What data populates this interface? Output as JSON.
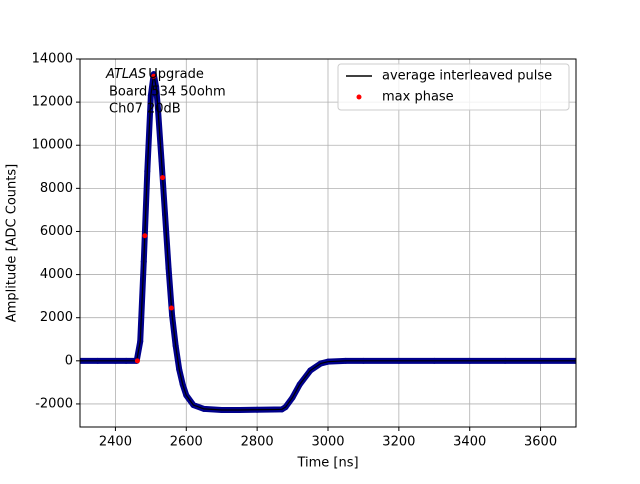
{
  "chart_data": {
    "type": "scatter",
    "xlabel": "Time [ns]",
    "ylabel": "Amplitude [ADC Counts]",
    "annotation": {
      "italic": "ATLAS",
      "lines": [
        "Upgrade",
        "Board 534 50ohm",
        "Ch07 20dB"
      ]
    },
    "xlim": [
      2300,
      3700
    ],
    "xticks": [
      2400,
      2600,
      2800,
      3000,
      3200,
      3400,
      3600
    ],
    "ylim": [
      -3070,
      14000
    ],
    "yticks": [
      -2000,
      0,
      2000,
      4000,
      6000,
      8000,
      10000,
      12000,
      14000
    ],
    "grid": true,
    "legend": "upper right",
    "series": [
      {
        "name": "average interleaved pulse",
        "color": "#000000",
        "marker_color": "#00008b",
        "line": true,
        "x": [
          2300,
          2350,
          2400,
          2430,
          2460,
          2470,
          2480,
          2490,
          2500,
          2508,
          2515,
          2520,
          2530,
          2540,
          2550,
          2560,
          2570,
          2580,
          2590,
          2600,
          2620,
          2650,
          2700,
          2750,
          2800,
          2850,
          2870,
          2880,
          2900,
          2920,
          2950,
          2980,
          3000,
          3050,
          3100,
          3200,
          3300,
          3400,
          3500,
          3600,
          3700
        ],
        "values": [
          0,
          0,
          0,
          0,
          0,
          900,
          4600,
          8800,
          12300,
          13300,
          12700,
          11700,
          9300,
          6800,
          4300,
          2100,
          700,
          -400,
          -1100,
          -1600,
          -2050,
          -2230,
          -2280,
          -2280,
          -2270,
          -2260,
          -2250,
          -2150,
          -1700,
          -1100,
          -450,
          -120,
          -40,
          0,
          0,
          0,
          0,
          0,
          0,
          0,
          0
        ]
      },
      {
        "name": "max phase",
        "color": "#ff0000",
        "line": false,
        "x": [
          2462,
          2483,
          2508,
          2533,
          2558
        ],
        "values": [
          0,
          5800,
          13200,
          8500,
          2450
        ]
      }
    ]
  }
}
